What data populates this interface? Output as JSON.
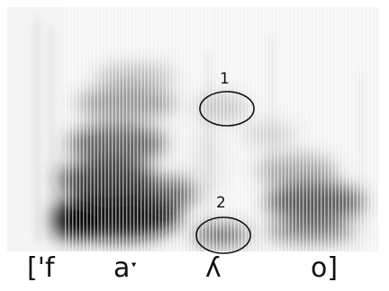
{
  "transcription": [
    {
      "label": "['f"
    },
    {
      "label": "aˑ"
    },
    {
      "label": "ʎ"
    },
    {
      "label": "o]"
    }
  ],
  "markers": [
    {
      "label": "1"
    },
    {
      "label": "2"
    }
  ],
  "colors": {
    "background": "#ffffff",
    "ink": "#111111",
    "spectrogram_dark": "#1a1a1a"
  }
}
